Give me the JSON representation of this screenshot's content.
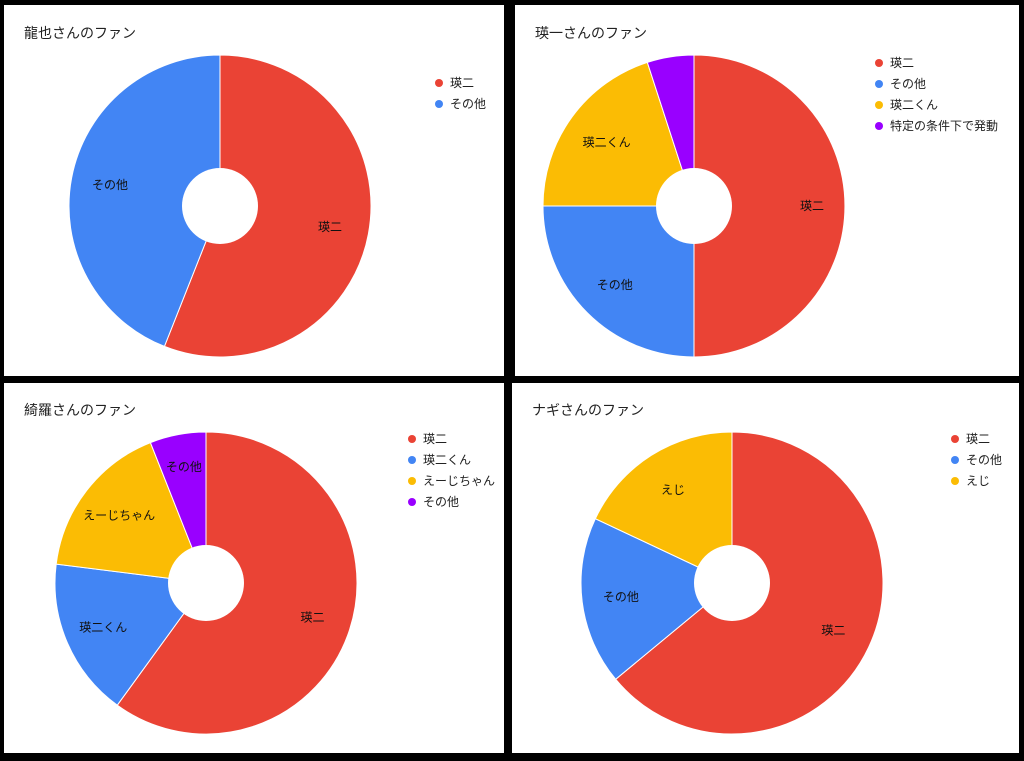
{
  "chart_data": [
    {
      "type": "pie",
      "title": "龍也さんのファン",
      "categories": [
        "瑛二",
        "その他"
      ],
      "values": [
        56,
        44
      ],
      "colors": [
        "#ea4335",
        "#4285f4"
      ],
      "slice_labels": [
        "瑛二",
        "その他"
      ],
      "legend_placement": "top-right",
      "donut": true
    },
    {
      "type": "pie",
      "title": "瑛一さんのファン",
      "categories": [
        "瑛二",
        "その他",
        "瑛二くん",
        "特定の条件下で発動"
      ],
      "values": [
        50,
        25,
        20,
        5
      ],
      "colors": [
        "#ea4335",
        "#4285f4",
        "#fbbc04",
        "#9900ff"
      ],
      "slice_labels": [
        "瑛二",
        "その他",
        "瑛二くん",
        ""
      ],
      "legend_placement": "top-right",
      "donut": true
    },
    {
      "type": "pie",
      "title": "綺羅さんのファン",
      "categories": [
        "瑛二",
        "瑛二くん",
        "えーじちゃん",
        "その他"
      ],
      "values": [
        60,
        17,
        17,
        6
      ],
      "colors": [
        "#ea4335",
        "#4285f4",
        "#fbbc04",
        "#9900ff"
      ],
      "slice_labels": [
        "瑛二",
        "瑛二くん",
        "えーじちゃん",
        "その他"
      ],
      "legend_placement": "top-right",
      "donut": true
    },
    {
      "type": "pie",
      "title": "ナギさんのファン",
      "categories": [
        "瑛二",
        "その他",
        "えじ"
      ],
      "values": [
        64,
        18,
        18
      ],
      "colors": [
        "#ea4335",
        "#4285f4",
        "#fbbc04"
      ],
      "slice_labels": [
        "瑛二",
        "その他",
        "えじ"
      ],
      "legend_placement": "top-right",
      "donut": true
    }
  ]
}
